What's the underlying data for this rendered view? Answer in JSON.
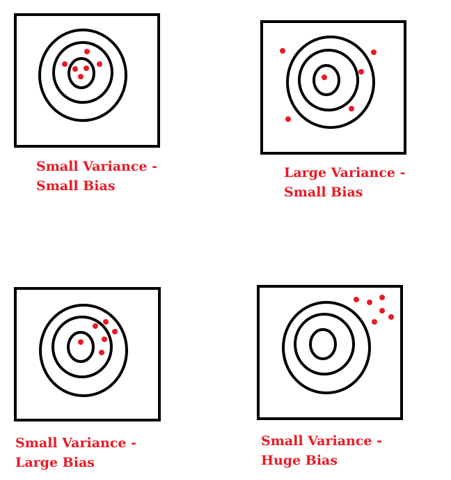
{
  "colors": {
    "ink": "#000000",
    "dot": "#e81a24",
    "caption": "#e81a24"
  },
  "panels": [
    {
      "caption_line1": "Small Variance -",
      "caption_line2": "Small Bias"
    },
    {
      "caption_line1": "Large Variance -",
      "caption_line2": "Small Bias"
    },
    {
      "caption_line1": "Small Variance -",
      "caption_line2": "Large Bias"
    },
    {
      "caption_line1": "Small Variance -",
      "caption_line2": "Huge Bias"
    }
  ]
}
